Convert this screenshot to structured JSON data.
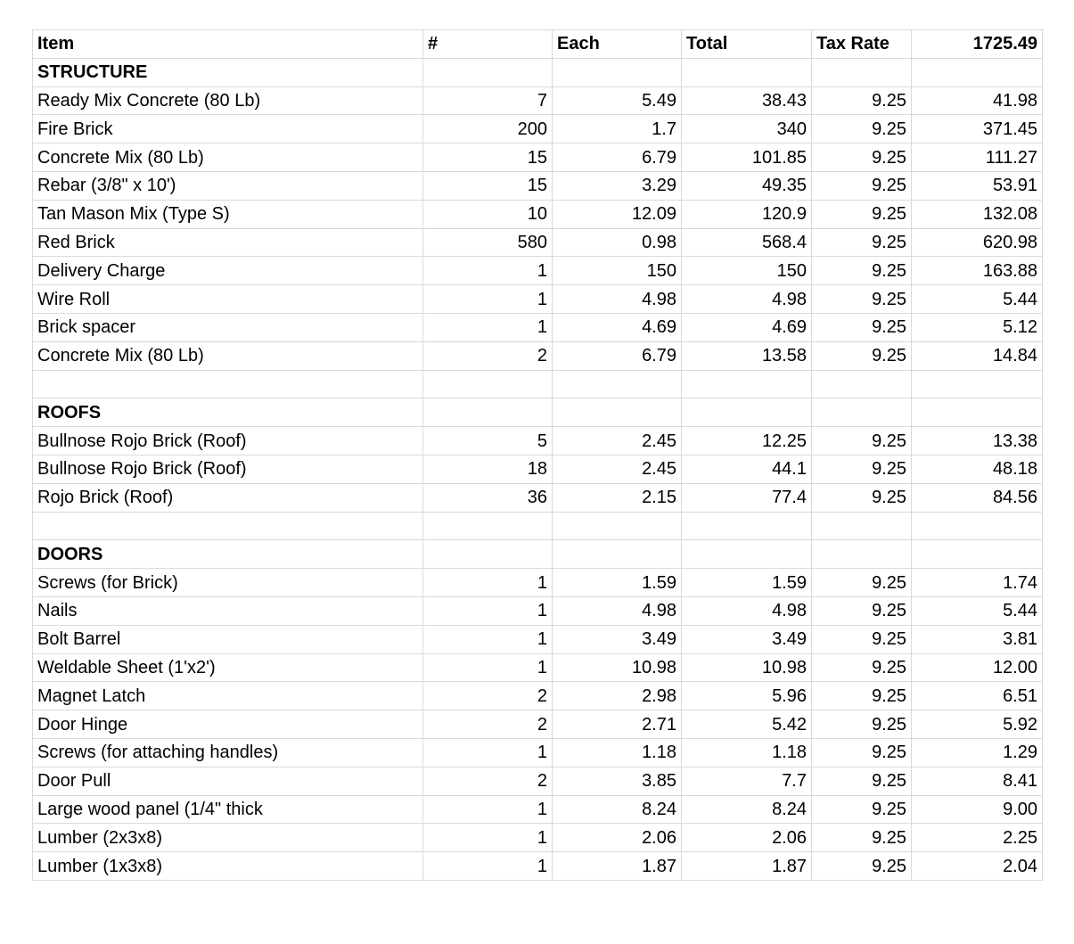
{
  "header": {
    "item": "Item",
    "qty": "#",
    "each": "Each",
    "total": "Total",
    "tax_rate": "Tax Rate",
    "grand_total": "1725.49"
  },
  "rows": [
    {
      "type": "section",
      "item": "STRUCTURE"
    },
    {
      "type": "item",
      "item": "Ready Mix Concrete (80 Lb)",
      "qty": "7",
      "each": "5.49",
      "total": "38.43",
      "tax": "9.25",
      "amount": "41.98"
    },
    {
      "type": "item",
      "item": "Fire Brick",
      "qty": "200",
      "each": "1.7",
      "total": "340",
      "tax": "9.25",
      "amount": "371.45"
    },
    {
      "type": "item",
      "item": "Concrete Mix (80 Lb)",
      "qty": "15",
      "each": "6.79",
      "total": "101.85",
      "tax": "9.25",
      "amount": "111.27"
    },
    {
      "type": "item",
      "item": "Rebar (3/8\" x 10')",
      "qty": "15",
      "each": "3.29",
      "total": "49.35",
      "tax": "9.25",
      "amount": "53.91"
    },
    {
      "type": "item",
      "item": "Tan Mason Mix (Type S)",
      "qty": "10",
      "each": "12.09",
      "total": "120.9",
      "tax": "9.25",
      "amount": "132.08"
    },
    {
      "type": "item",
      "item": "Red Brick",
      "qty": "580",
      "each": "0.98",
      "total": "568.4",
      "tax": "9.25",
      "amount": "620.98"
    },
    {
      "type": "item",
      "item": "Delivery Charge",
      "qty": "1",
      "each": "150",
      "total": "150",
      "tax": "9.25",
      "amount": "163.88"
    },
    {
      "type": "item",
      "item": "Wire Roll",
      "qty": "1",
      "each": "4.98",
      "total": "4.98",
      "tax": "9.25",
      "amount": "5.44"
    },
    {
      "type": "item",
      "item": "Brick spacer",
      "qty": "1",
      "each": "4.69",
      "total": "4.69",
      "tax": "9.25",
      "amount": "5.12"
    },
    {
      "type": "item",
      "item": "Concrete Mix (80 Lb)",
      "qty": "2",
      "each": "6.79",
      "total": "13.58",
      "tax": "9.25",
      "amount": "14.84"
    },
    {
      "type": "blank"
    },
    {
      "type": "section",
      "item": "ROOFS"
    },
    {
      "type": "item",
      "item": "Bullnose Rojo Brick (Roof)",
      "qty": "5",
      "each": "2.45",
      "total": "12.25",
      "tax": "9.25",
      "amount": "13.38"
    },
    {
      "type": "item",
      "item": "Bullnose Rojo Brick (Roof)",
      "qty": "18",
      "each": "2.45",
      "total": "44.1",
      "tax": "9.25",
      "amount": "48.18"
    },
    {
      "type": "item",
      "item": "Rojo Brick (Roof)",
      "qty": "36",
      "each": "2.15",
      "total": "77.4",
      "tax": "9.25",
      "amount": "84.56"
    },
    {
      "type": "blank"
    },
    {
      "type": "section",
      "item": "DOORS"
    },
    {
      "type": "item",
      "item": "Screws (for Brick)",
      "qty": "1",
      "each": "1.59",
      "total": "1.59",
      "tax": "9.25",
      "amount": "1.74"
    },
    {
      "type": "item",
      "item": "Nails",
      "qty": "1",
      "each": "4.98",
      "total": "4.98",
      "tax": "9.25",
      "amount": "5.44"
    },
    {
      "type": "item",
      "item": "Bolt Barrel",
      "qty": "1",
      "each": "3.49",
      "total": "3.49",
      "tax": "9.25",
      "amount": "3.81"
    },
    {
      "type": "item",
      "item": "Weldable Sheet (1'x2')",
      "qty": "1",
      "each": "10.98",
      "total": "10.98",
      "tax": "9.25",
      "amount": "12.00"
    },
    {
      "type": "item",
      "item": "Magnet Latch",
      "qty": "2",
      "each": "2.98",
      "total": "5.96",
      "tax": "9.25",
      "amount": "6.51"
    },
    {
      "type": "item",
      "item": "Door Hinge",
      "qty": "2",
      "each": "2.71",
      "total": "5.42",
      "tax": "9.25",
      "amount": "5.92"
    },
    {
      "type": "item",
      "item": "Screws (for attaching handles)",
      "qty": "1",
      "each": "1.18",
      "total": "1.18",
      "tax": "9.25",
      "amount": "1.29"
    },
    {
      "type": "item",
      "item": "Door Pull",
      "qty": "2",
      "each": "3.85",
      "total": "7.7",
      "tax": "9.25",
      "amount": "8.41"
    },
    {
      "type": "item",
      "item": "Large wood panel (1/4\" thick",
      "qty": "1",
      "each": "8.24",
      "total": "8.24",
      "tax": "9.25",
      "amount": "9.00"
    },
    {
      "type": "item",
      "item": "Lumber (2x3x8)",
      "qty": "1",
      "each": "2.06",
      "total": "2.06",
      "tax": "9.25",
      "amount": "2.25"
    },
    {
      "type": "item",
      "item": "Lumber (1x3x8)",
      "qty": "1",
      "each": "1.87",
      "total": "1.87",
      "tax": "9.25",
      "amount": "2.04"
    }
  ]
}
